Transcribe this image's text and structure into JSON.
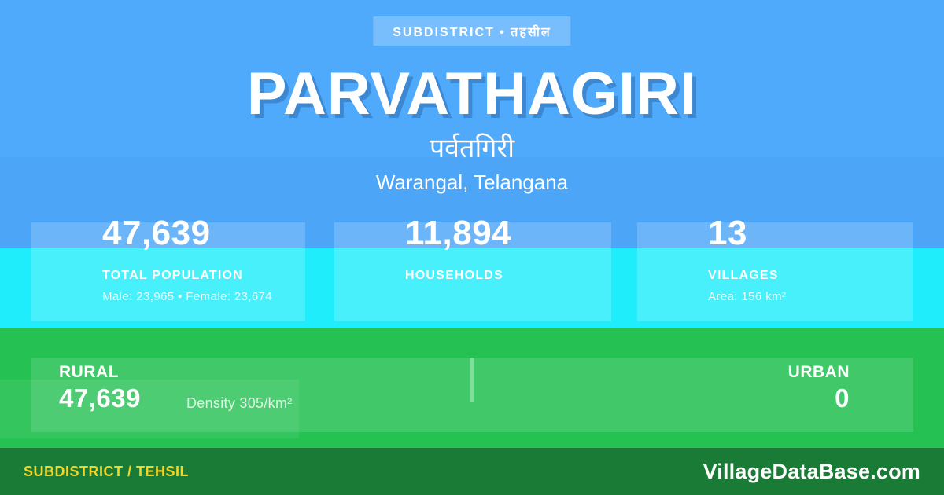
{
  "badge": {
    "label": "SUBDISTRICT • तहसील"
  },
  "header": {
    "title": "PARVATHAGIRI",
    "title_native": "पर्वतगिरी",
    "location": "Warangal, Telangana"
  },
  "stats": [
    {
      "value": "47,639",
      "label": "TOTAL POPULATION",
      "detail": "Male: 23,965 • Female: 23,674"
    },
    {
      "value": "11,894",
      "label": "HOUSEHOLDS",
      "detail": ""
    },
    {
      "value": "13",
      "label": "VILLAGES",
      "detail": "Area: 156 km²"
    }
  ],
  "split": {
    "rural_label": "RURAL",
    "rural_value": "47,639",
    "density": "Density 305/km²",
    "urban_label": "URBAN",
    "urban_value": "0"
  },
  "footer": {
    "type_label": "SUBDISTRICT / TEHSIL",
    "site": "VillageDataBase.com"
  },
  "colors": {
    "blue_bg": "#4FAAFC",
    "cyan_band": "#20EDFC",
    "green_band": "#25C153",
    "footer_bar": "#1A7B36",
    "accent_yellow": "#F2D52B",
    "white": "#FFFFFF"
  }
}
